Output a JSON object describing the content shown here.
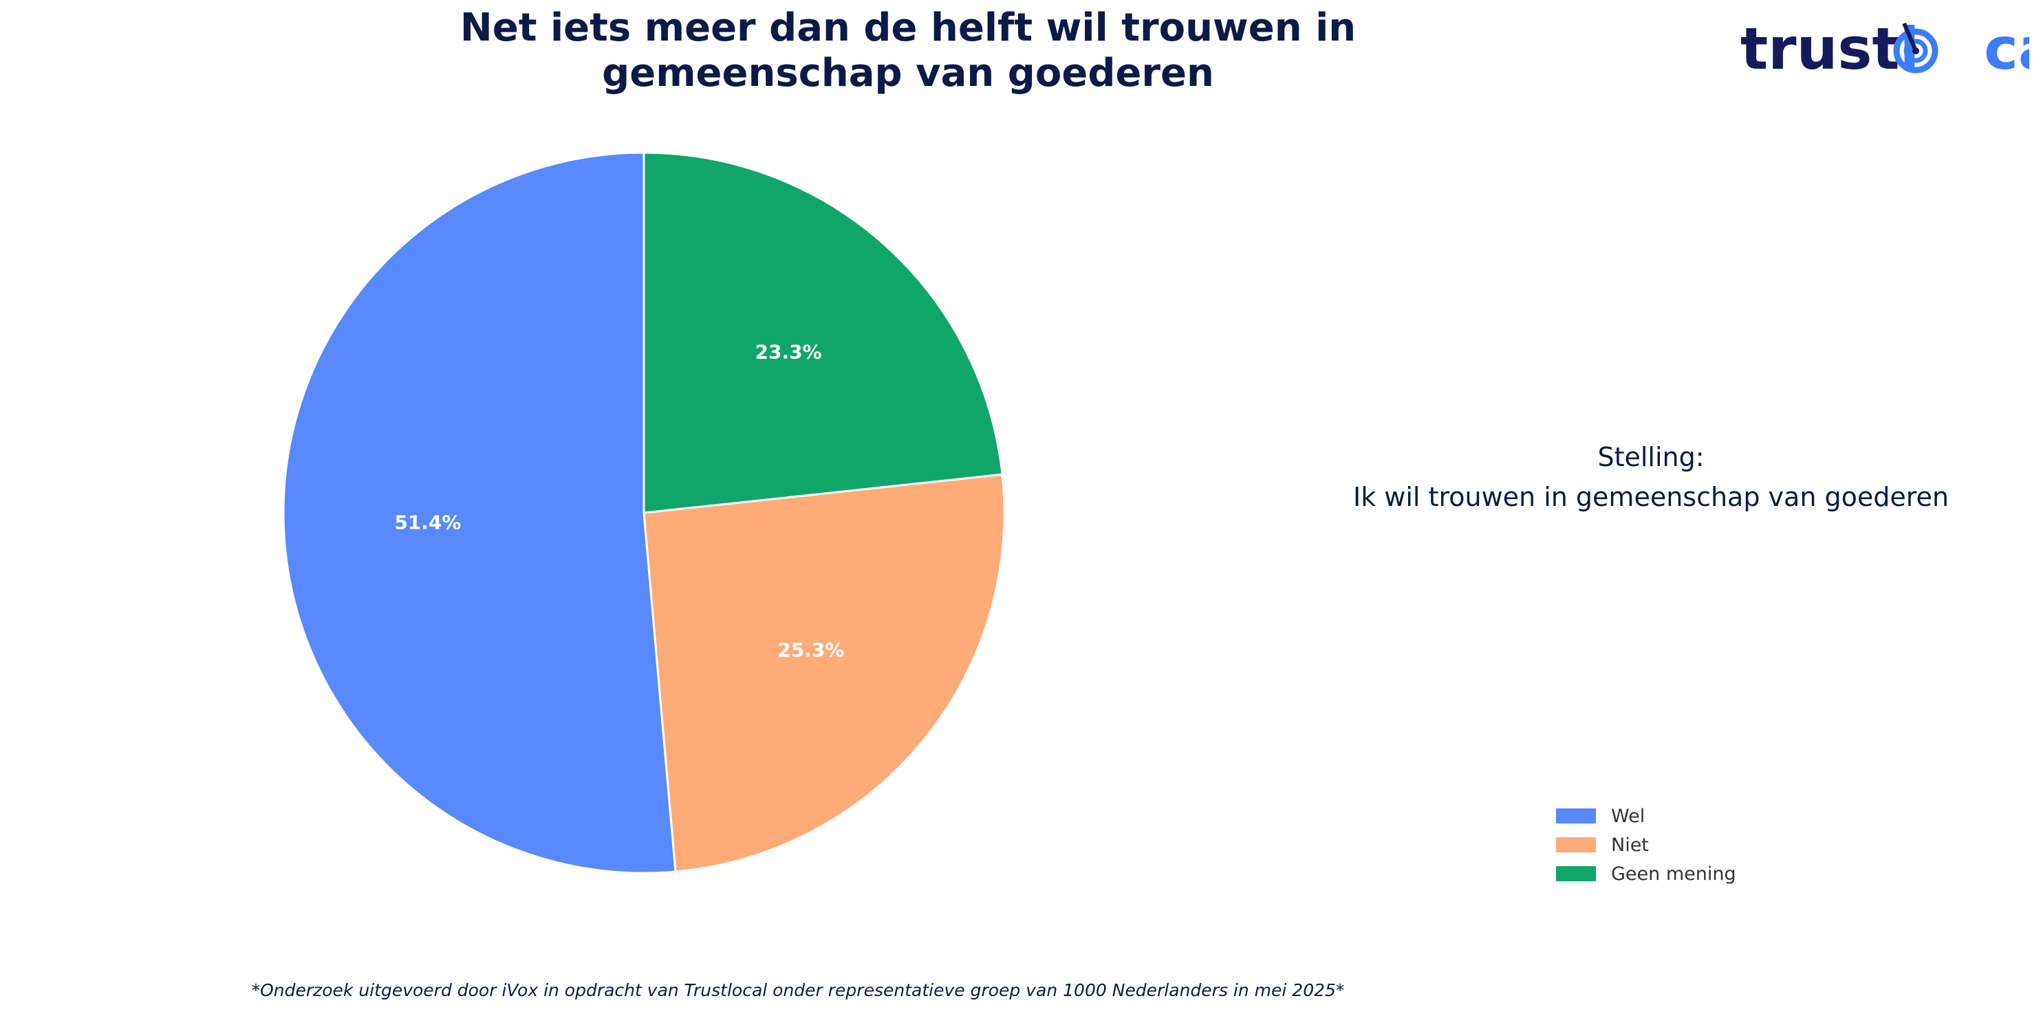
{
  "title": {
    "line1": "Net iets meer dan de helft wil trouwen in",
    "line2": "gemeenschap van goederen"
  },
  "logo": {
    "part1": "trust",
    "part2": "l",
    "part3": "cal",
    "color_dark": "#141a5c",
    "color_blue": "#3d7df5"
  },
  "statement": {
    "heading": "Stelling:",
    "text": "Ik wil trouwen in gemeenschap van goederen"
  },
  "footnote": "*Onderzoek uitgevoerd door iVox in opdracht van Trustlocal onder representatieve groep van 1000 Nederlanders in mei 2025*",
  "chart_data": {
    "type": "pie",
    "title": "Net iets meer dan de helft wil trouwen in gemeenschap van goederen",
    "start_angle_deg": 90,
    "direction": "counterclockwise",
    "slices": [
      {
        "label": "Wel",
        "value": 51.4,
        "display": "51.4%",
        "color": "#5889fd"
      },
      {
        "label": "Niet",
        "value": 25.3,
        "display": "25.3%",
        "color": "#feab78"
      },
      {
        "label": "Geen mening",
        "value": 23.3,
        "display": "23.3%",
        "color": "#10a66a"
      }
    ],
    "legend_position": "lower-right"
  }
}
